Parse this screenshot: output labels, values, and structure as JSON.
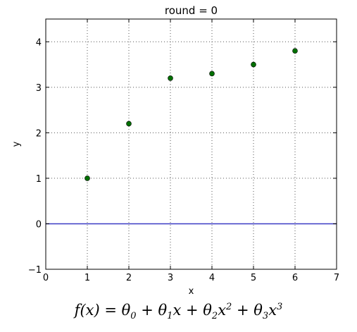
{
  "chart_data": {
    "type": "scatter",
    "title": "round = 0",
    "xlabel": "x",
    "ylabel": "y",
    "xlim": [
      0,
      7
    ],
    "ylim": [
      -1,
      4.5
    ],
    "xticks": [
      0,
      1,
      2,
      3,
      4,
      5,
      6,
      7
    ],
    "yticks": [
      -1,
      0,
      1,
      2,
      3,
      4
    ],
    "xtick_labels": [
      "0",
      "1",
      "2",
      "3",
      "4",
      "5",
      "6",
      "7"
    ],
    "ytick_labels": [
      "−1",
      "0",
      "1",
      "2",
      "3",
      "4"
    ],
    "grid": true,
    "points": {
      "x": [
        1,
        2,
        3,
        4,
        5,
        6
      ],
      "y": [
        1.0,
        2.2,
        3.2,
        3.3,
        3.5,
        3.8
      ],
      "color": "#007000"
    },
    "fit_line": {
      "x": [
        0,
        7
      ],
      "y": [
        0,
        0
      ],
      "color": "#3a3ac4"
    }
  },
  "formula": {
    "lhs": "f(x) = ",
    "t0": "θ",
    "s0": "0",
    "p1": " + ",
    "t1": "θ",
    "s1": "1",
    "x1": "x + ",
    "t2": "θ",
    "s2": "2",
    "x2": "x",
    "e2": "2",
    "p3": " + ",
    "t3": "θ",
    "s3": "3",
    "x3": "x",
    "e3": "3"
  }
}
